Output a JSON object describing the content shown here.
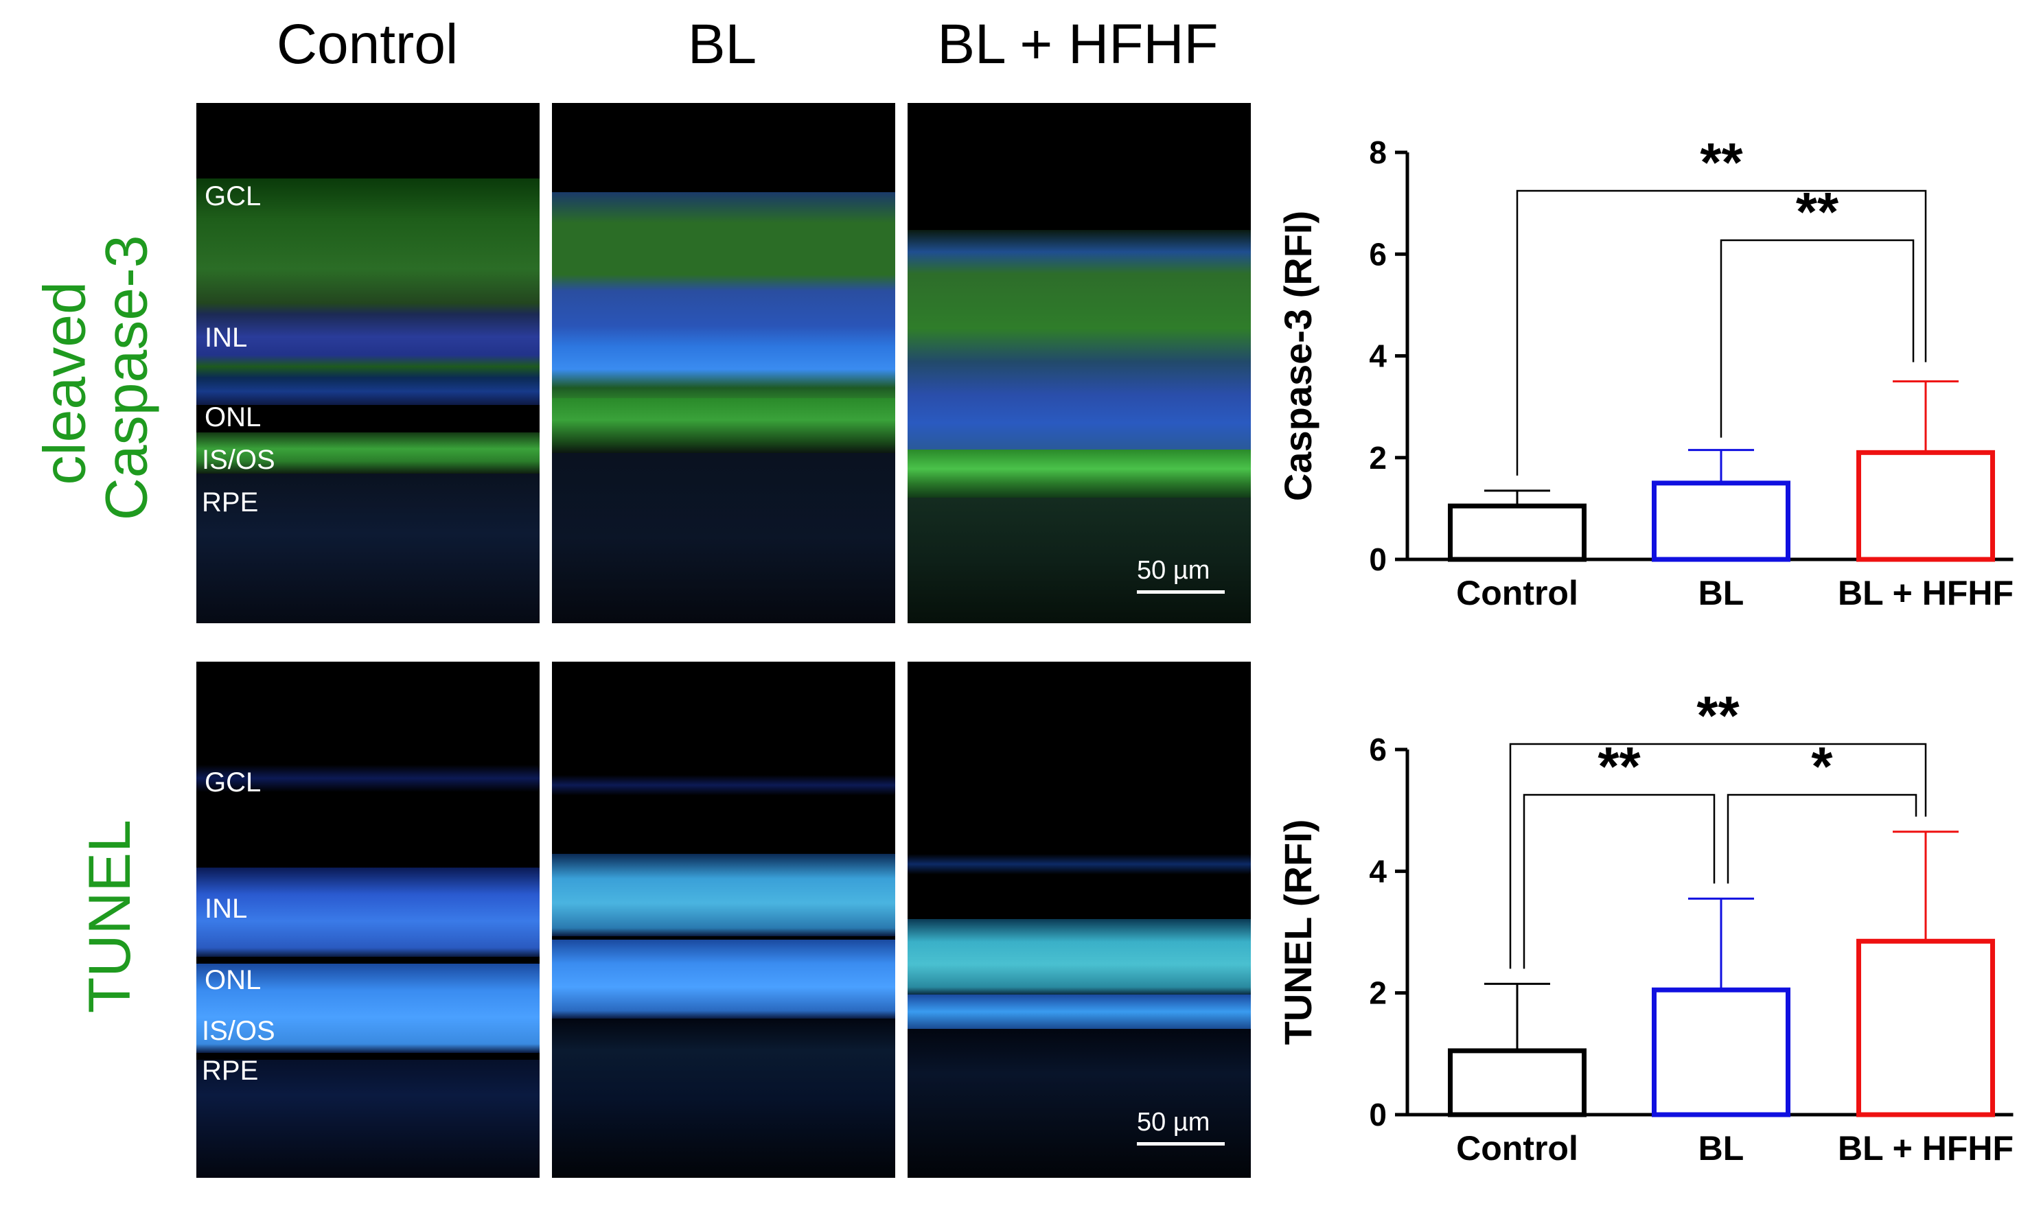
{
  "columns": [
    "Control",
    "BL",
    "BL + HFHF"
  ],
  "rows": [
    {
      "label_line1": "cleaved",
      "label_line2": "Caspase-3"
    },
    {
      "label_line1": "TUNEL",
      "label_line2": ""
    }
  ],
  "layer_labels_row1": [
    "GCL",
    "INL",
    "ONL",
    "IS/OS",
    "RPE"
  ],
  "layer_labels_row2": [
    "GCL",
    "INL",
    "ONL",
    "IS/OS",
    "RPE"
  ],
  "scale_bar": "50 µm",
  "colors": {
    "control": "#000000",
    "bl": "#1010e0",
    "bl_hfhf": "#ee1111",
    "row_label": "#1f9a1f"
  },
  "chart_data": [
    {
      "type": "bar",
      "ylabel": "Caspase-3 (RFI)",
      "categories": [
        "Control",
        "BL",
        "BL + HFHF"
      ],
      "values": [
        1.05,
        1.5,
        2.1
      ],
      "errors": [
        0.3,
        0.65,
        1.4
      ],
      "ylim": [
        0,
        8
      ],
      "yticks": [
        "0",
        "2",
        "4",
        "6",
        "8"
      ],
      "significance": [
        {
          "from": 0,
          "to": 2,
          "label": "**"
        },
        {
          "from": 1,
          "to": 2,
          "label": "**"
        }
      ]
    },
    {
      "type": "bar",
      "ylabel": "TUNEL (RFI)",
      "categories": [
        "Control",
        "BL",
        "BL + HFHF"
      ],
      "values": [
        1.05,
        2.05,
        2.85
      ],
      "errors": [
        1.1,
        1.5,
        1.8
      ],
      "ylim": [
        0,
        6
      ],
      "yticks": [
        "0",
        "2",
        "4",
        "6"
      ],
      "significance": [
        {
          "from": 0,
          "to": 2,
          "label": "**"
        },
        {
          "from": 0,
          "to": 1,
          "label": "**"
        },
        {
          "from": 1,
          "to": 2,
          "label": "*"
        }
      ]
    }
  ]
}
